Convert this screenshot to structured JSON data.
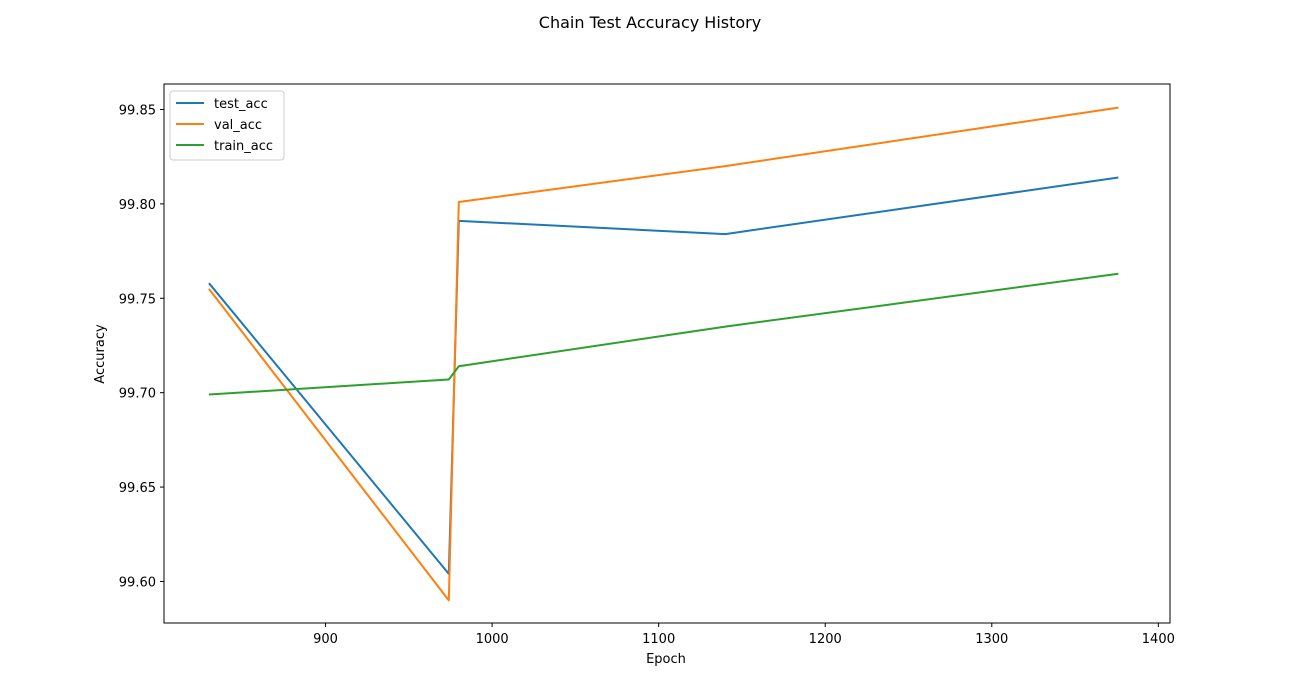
{
  "chart_data": {
    "type": "line",
    "title": "Chain Test Accuracy History",
    "xlabel": "Epoch",
    "ylabel": "Accuracy",
    "xlim": [
      803,
      1407
    ],
    "ylim": [
      99.578,
      99.8635
    ],
    "xticks": [
      900,
      1000,
      1100,
      1200,
      1300,
      1400
    ],
    "yticks": [
      99.6,
      99.65,
      99.7,
      99.75,
      99.8,
      99.85
    ],
    "ytick_labels": [
      "99.60",
      "99.65",
      "99.70",
      "99.75",
      "99.80",
      "99.85"
    ],
    "grid": false,
    "legend_position": "top-left",
    "series": [
      {
        "name": "test_acc",
        "color": "#1f77b4",
        "x": [
          830,
          974,
          980,
          1140,
          1376
        ],
        "y": [
          99.758,
          99.604,
          99.791,
          99.784,
          99.814
        ]
      },
      {
        "name": "val_acc",
        "color": "#ff7f0e",
        "x": [
          830,
          974,
          980,
          1140,
          1376
        ],
        "y": [
          99.755,
          99.59,
          99.801,
          99.82,
          99.851
        ]
      },
      {
        "name": "train_acc",
        "color": "#2ca02c",
        "x": [
          830,
          974,
          980,
          1140,
          1376
        ],
        "y": [
          99.699,
          99.707,
          99.714,
          99.735,
          99.763
        ]
      }
    ]
  }
}
